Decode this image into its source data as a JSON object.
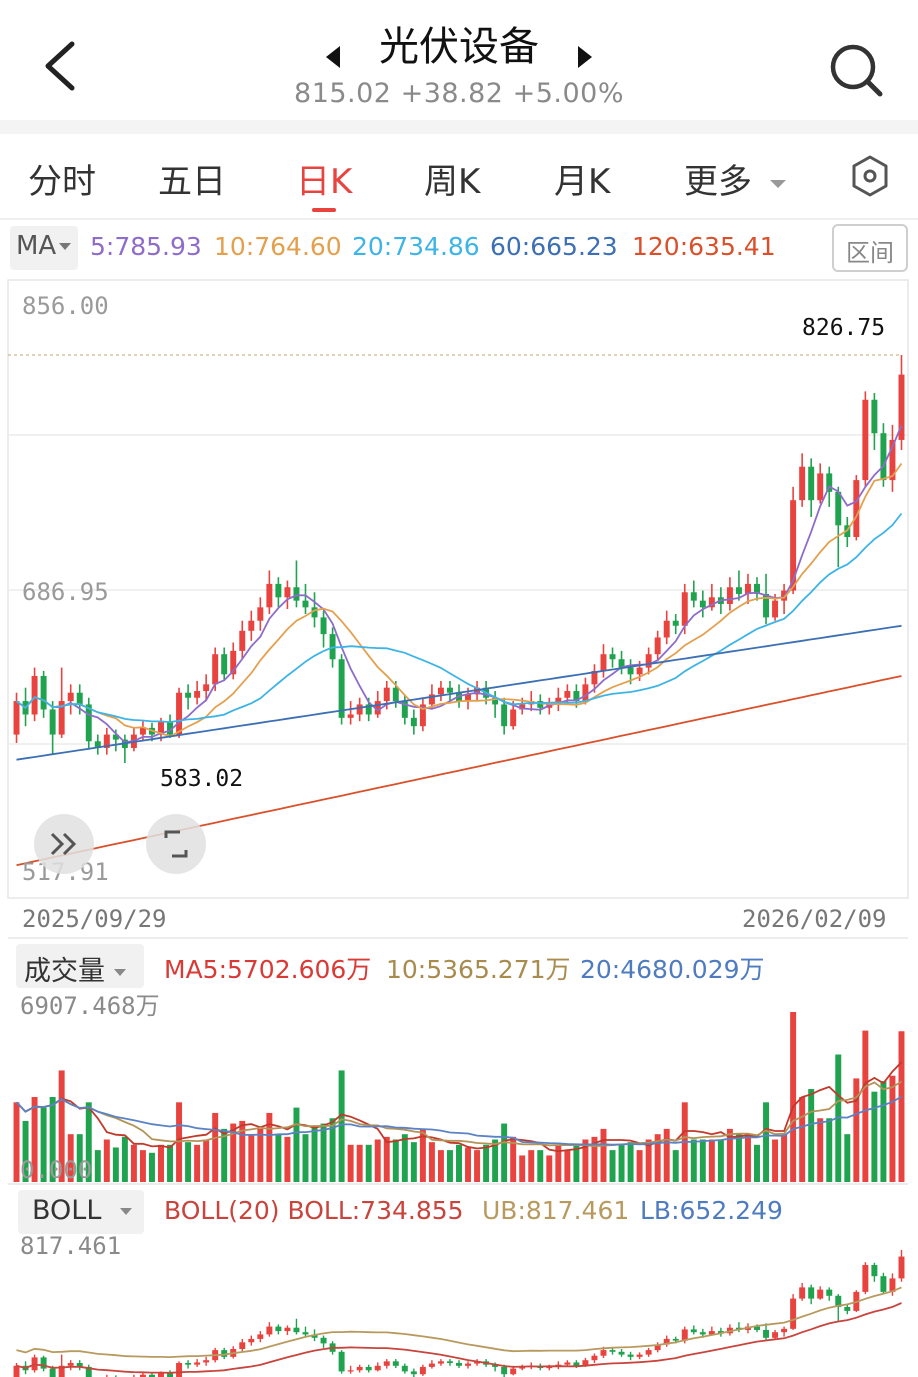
{
  "header": {
    "title": "光伏设备",
    "quote": "815.02 +38.82 +5.00%"
  },
  "tabs": [
    {
      "label": "分时"
    },
    {
      "label": "五日"
    },
    {
      "label": "日K"
    },
    {
      "label": "周K"
    },
    {
      "label": "月K"
    },
    {
      "label": "更多"
    }
  ],
  "active_tab": "日K",
  "ma": {
    "selector": "MA",
    "ma5": "5:785.93",
    "ma10": "10:764.60",
    "ma20": "20:734.86",
    "ma60": "60:665.23",
    "ma120": "120:635.41",
    "range_button": "区间",
    "colors": {
      "ma5": "#8e6cc9",
      "ma10": "#e3a04e",
      "ma20": "#3db4e6",
      "ma60": "#3c6fb4",
      "ma120": "#d9502a"
    }
  },
  "price_chart": {
    "y_top": "856.00",
    "y_mid": "686.95",
    "y_bottom": "517.91",
    "high_marker": "826.75",
    "low_marker": "583.02",
    "date_start": "2025/09/29",
    "date_end": "2026/02/09"
  },
  "volume": {
    "selector": "成交量",
    "ma5": "MA5:5702.606万",
    "ma10": "10:5365.271万",
    "ma20": "20:4680.029万",
    "y_max": "6907.468万",
    "y_zero": "0.000"
  },
  "boll": {
    "selector": "BOLL",
    "label": "BOLL(20) BOLL:734.855",
    "ub": "UB:817.461",
    "lb": "LB:652.249",
    "y_top": "817.461"
  },
  "colors": {
    "up": "#e8433f",
    "down": "#1fa34f",
    "accent": "#e8433f"
  },
  "chart_data": {
    "type": "candlestick",
    "title": "",
    "date_range": [
      "2025/09/29",
      "2026/02/09"
    ],
    "ylim": [
      517.91,
      856.0
    ],
    "candles": [
      {
        "o": 600,
        "c": 620,
        "h": 625,
        "l": 595
      },
      {
        "o": 620,
        "c": 612,
        "h": 628,
        "l": 605
      },
      {
        "o": 612,
        "c": 635,
        "h": 640,
        "l": 608
      },
      {
        "o": 635,
        "c": 615,
        "h": 638,
        "l": 610
      },
      {
        "o": 615,
        "c": 600,
        "h": 620,
        "l": 588
      },
      {
        "o": 600,
        "c": 620,
        "h": 640,
        "l": 598
      },
      {
        "o": 620,
        "c": 625,
        "h": 630,
        "l": 612
      },
      {
        "o": 625,
        "c": 618,
        "h": 630,
        "l": 612
      },
      {
        "o": 618,
        "c": 596,
        "h": 622,
        "l": 592
      },
      {
        "o": 596,
        "c": 592,
        "h": 600,
        "l": 588
      },
      {
        "o": 592,
        "c": 600,
        "h": 604,
        "l": 588
      },
      {
        "o": 600,
        "c": 597,
        "h": 603,
        "l": 590
      },
      {
        "o": 597,
        "c": 592,
        "h": 600,
        "l": 583
      },
      {
        "o": 592,
        "c": 600,
        "h": 604,
        "l": 590
      },
      {
        "o": 600,
        "c": 604,
        "h": 608,
        "l": 596
      },
      {
        "o": 604,
        "c": 600,
        "h": 607,
        "l": 596
      },
      {
        "o": 600,
        "c": 608,
        "h": 610,
        "l": 596
      },
      {
        "o": 608,
        "c": 600,
        "h": 612,
        "l": 598
      },
      {
        "o": 600,
        "c": 625,
        "h": 628,
        "l": 598
      },
      {
        "o": 625,
        "c": 622,
        "h": 630,
        "l": 615
      },
      {
        "o": 622,
        "c": 626,
        "h": 632,
        "l": 618
      },
      {
        "o": 626,
        "c": 630,
        "h": 636,
        "l": 620
      },
      {
        "o": 630,
        "c": 648,
        "h": 652,
        "l": 626
      },
      {
        "o": 648,
        "c": 636,
        "h": 652,
        "l": 632
      },
      {
        "o": 636,
        "c": 650,
        "h": 655,
        "l": 633
      },
      {
        "o": 650,
        "c": 662,
        "h": 668,
        "l": 645
      },
      {
        "o": 662,
        "c": 668,
        "h": 674,
        "l": 656
      },
      {
        "o": 668,
        "c": 676,
        "h": 682,
        "l": 662
      },
      {
        "o": 676,
        "c": 690,
        "h": 698,
        "l": 672
      },
      {
        "o": 690,
        "c": 682,
        "h": 694,
        "l": 676
      },
      {
        "o": 682,
        "c": 688,
        "h": 692,
        "l": 675
      },
      {
        "o": 688,
        "c": 680,
        "h": 704,
        "l": 676
      },
      {
        "o": 680,
        "c": 676,
        "h": 690,
        "l": 672
      },
      {
        "o": 676,
        "c": 670,
        "h": 685,
        "l": 664
      },
      {
        "o": 670,
        "c": 660,
        "h": 674,
        "l": 652
      },
      {
        "o": 660,
        "c": 645,
        "h": 664,
        "l": 640
      },
      {
        "o": 645,
        "c": 610,
        "h": 648,
        "l": 606
      },
      {
        "o": 610,
        "c": 612,
        "h": 620,
        "l": 606
      },
      {
        "o": 612,
        "c": 618,
        "h": 622,
        "l": 608
      },
      {
        "o": 618,
        "c": 612,
        "h": 622,
        "l": 608
      },
      {
        "o": 612,
        "c": 620,
        "h": 626,
        "l": 610
      },
      {
        "o": 620,
        "c": 628,
        "h": 632,
        "l": 615
      },
      {
        "o": 628,
        "c": 620,
        "h": 632,
        "l": 616
      },
      {
        "o": 620,
        "c": 610,
        "h": 624,
        "l": 606
      },
      {
        "o": 610,
        "c": 605,
        "h": 615,
        "l": 600
      },
      {
        "o": 605,
        "c": 618,
        "h": 622,
        "l": 602
      },
      {
        "o": 618,
        "c": 624,
        "h": 630,
        "l": 615
      },
      {
        "o": 624,
        "c": 628,
        "h": 632,
        "l": 620
      },
      {
        "o": 628,
        "c": 625,
        "h": 632,
        "l": 620
      },
      {
        "o": 625,
        "c": 620,
        "h": 630,
        "l": 616
      },
      {
        "o": 620,
        "c": 624,
        "h": 628,
        "l": 615
      },
      {
        "o": 624,
        "c": 628,
        "h": 632,
        "l": 620
      },
      {
        "o": 628,
        "c": 622,
        "h": 632,
        "l": 618
      },
      {
        "o": 622,
        "c": 618,
        "h": 626,
        "l": 610
      },
      {
        "o": 618,
        "c": 605,
        "h": 622,
        "l": 600
      },
      {
        "o": 605,
        "c": 615,
        "h": 620,
        "l": 603
      },
      {
        "o": 615,
        "c": 618,
        "h": 622,
        "l": 612
      },
      {
        "o": 618,
        "c": 620,
        "h": 626,
        "l": 614
      },
      {
        "o": 620,
        "c": 616,
        "h": 624,
        "l": 612
      },
      {
        "o": 616,
        "c": 618,
        "h": 622,
        "l": 612
      },
      {
        "o": 618,
        "c": 622,
        "h": 628,
        "l": 614
      },
      {
        "o": 622,
        "c": 626,
        "h": 630,
        "l": 618
      },
      {
        "o": 626,
        "c": 620,
        "h": 630,
        "l": 616
      },
      {
        "o": 620,
        "c": 630,
        "h": 634,
        "l": 618
      },
      {
        "o": 630,
        "c": 638,
        "h": 642,
        "l": 625
      },
      {
        "o": 638,
        "c": 648,
        "h": 654,
        "l": 634
      },
      {
        "o": 648,
        "c": 645,
        "h": 652,
        "l": 640
      },
      {
        "o": 645,
        "c": 640,
        "h": 650,
        "l": 636
      },
      {
        "o": 640,
        "c": 636,
        "h": 645,
        "l": 630
      },
      {
        "o": 636,
        "c": 640,
        "h": 644,
        "l": 632
      },
      {
        "o": 640,
        "c": 648,
        "h": 652,
        "l": 636
      },
      {
        "o": 648,
        "c": 658,
        "h": 662,
        "l": 644
      },
      {
        "o": 658,
        "c": 668,
        "h": 674,
        "l": 654
      },
      {
        "o": 668,
        "c": 665,
        "h": 672,
        "l": 660
      },
      {
        "o": 665,
        "c": 685,
        "h": 690,
        "l": 660
      },
      {
        "o": 685,
        "c": 680,
        "h": 692,
        "l": 676
      },
      {
        "o": 680,
        "c": 676,
        "h": 686,
        "l": 670
      },
      {
        "o": 676,
        "c": 682,
        "h": 690,
        "l": 674
      },
      {
        "o": 682,
        "c": 678,
        "h": 688,
        "l": 672
      },
      {
        "o": 678,
        "c": 688,
        "h": 694,
        "l": 674
      },
      {
        "o": 688,
        "c": 684,
        "h": 698,
        "l": 680
      },
      {
        "o": 684,
        "c": 690,
        "h": 696,
        "l": 678
      },
      {
        "o": 690,
        "c": 684,
        "h": 694,
        "l": 680
      },
      {
        "o": 684,
        "c": 670,
        "h": 696,
        "l": 666
      },
      {
        "o": 670,
        "c": 680,
        "h": 684,
        "l": 668
      },
      {
        "o": 680,
        "c": 686,
        "h": 690,
        "l": 672
      },
      {
        "o": 686,
        "c": 740,
        "h": 748,
        "l": 684
      },
      {
        "o": 740,
        "c": 760,
        "h": 768,
        "l": 736
      },
      {
        "o": 760,
        "c": 740,
        "h": 765,
        "l": 730
      },
      {
        "o": 740,
        "c": 756,
        "h": 762,
        "l": 738
      },
      {
        "o": 756,
        "c": 745,
        "h": 760,
        "l": 736
      },
      {
        "o": 745,
        "c": 725,
        "h": 748,
        "l": 700
      },
      {
        "o": 725,
        "c": 718,
        "h": 730,
        "l": 712
      },
      {
        "o": 718,
        "c": 752,
        "h": 755,
        "l": 716
      },
      {
        "o": 752,
        "c": 800,
        "h": 805,
        "l": 748
      },
      {
        "o": 800,
        "c": 780,
        "h": 804,
        "l": 770
      },
      {
        "o": 780,
        "c": 752,
        "h": 786,
        "l": 748
      },
      {
        "o": 752,
        "c": 776,
        "h": 785,
        "l": 745
      },
      {
        "o": 776,
        "c": 815,
        "h": 826.75,
        "l": 770
      }
    ]
  }
}
